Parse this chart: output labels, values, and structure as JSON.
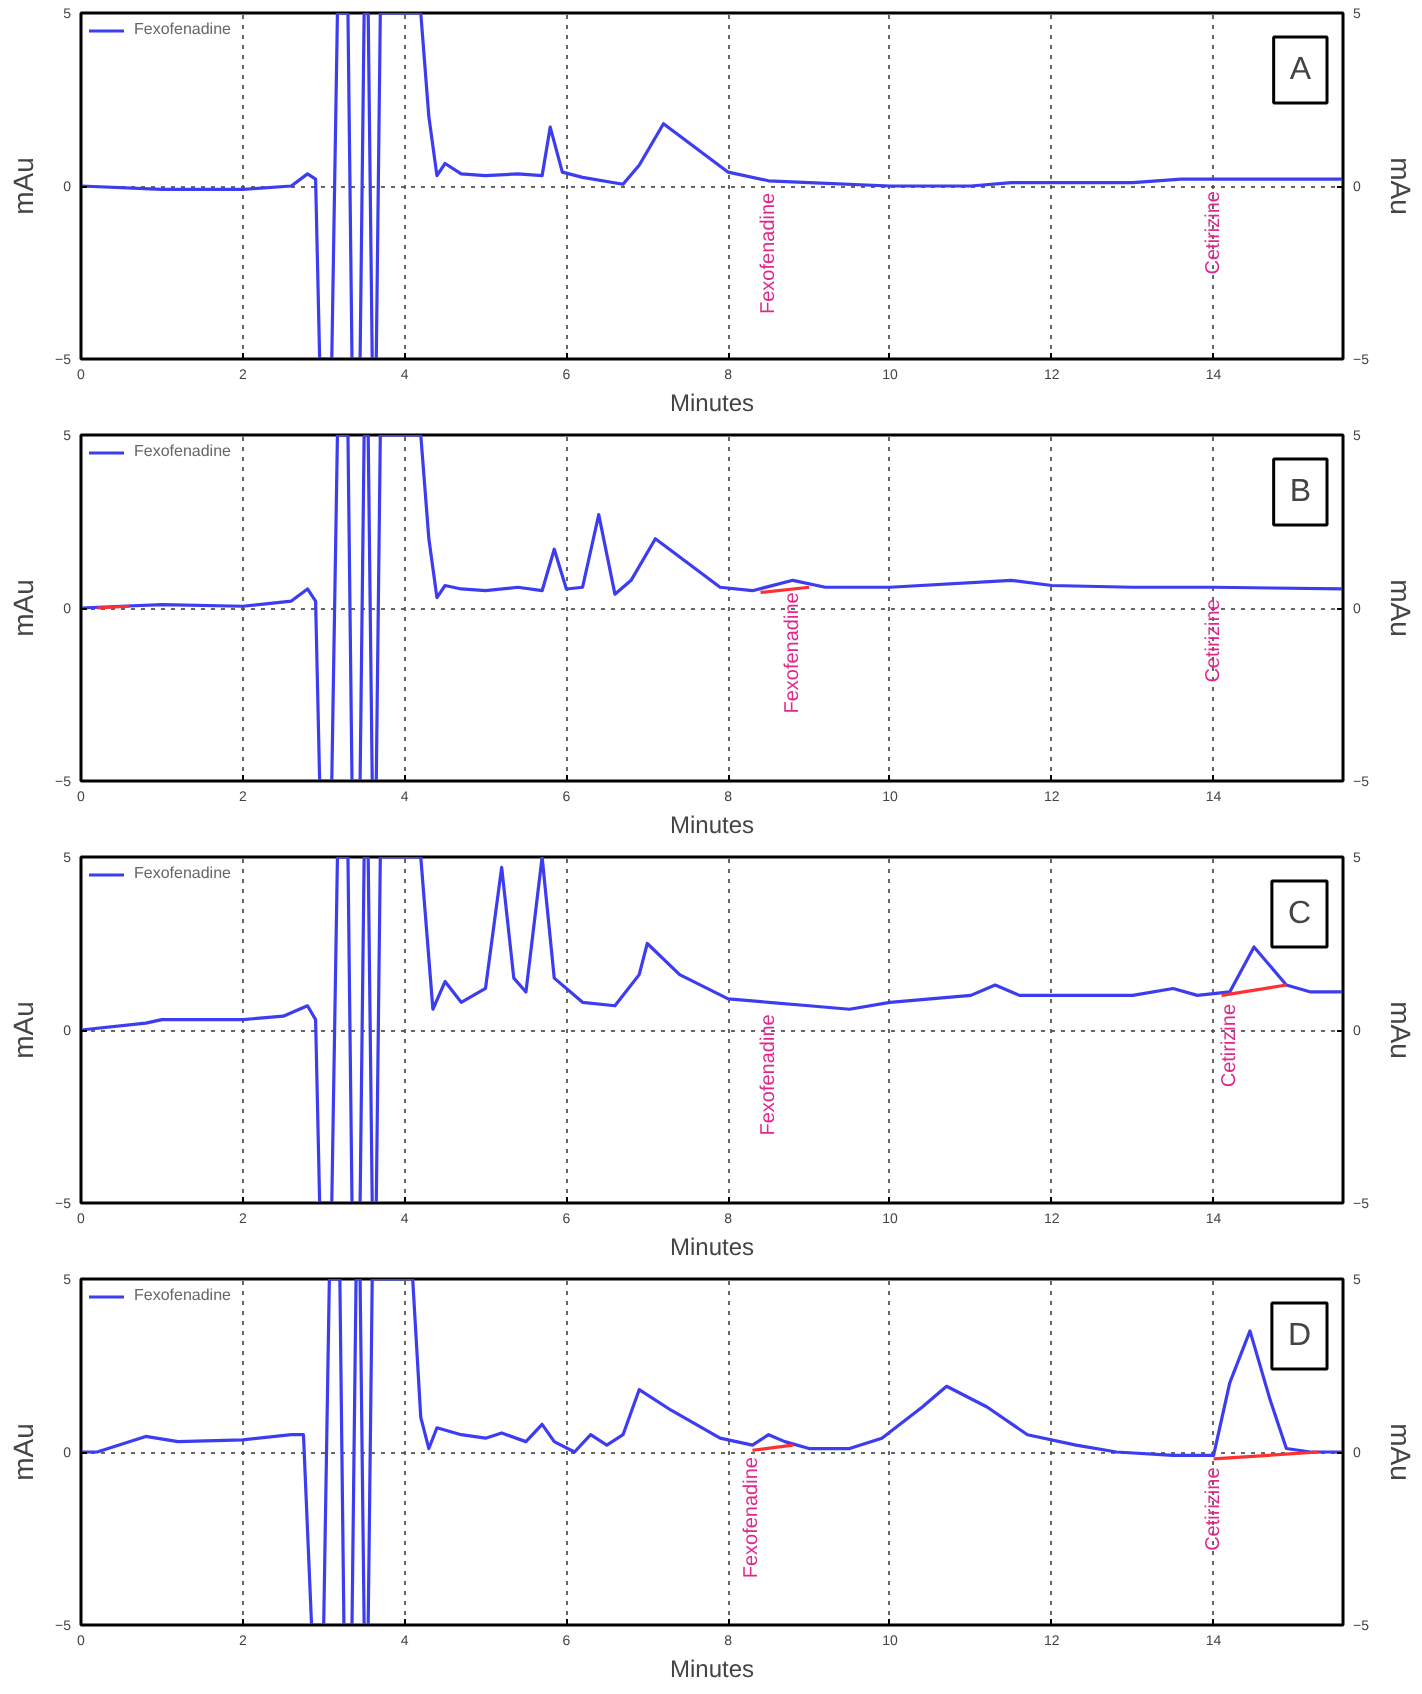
{
  "chart_data": [
    {
      "type": "line",
      "xlabel": "Minutes",
      "ylabel": "mAu",
      "y2label": "mAu",
      "xlim": [
        0,
        15.6
      ],
      "ylim": [
        -5,
        5
      ],
      "y2lim": [
        -5,
        5
      ],
      "xticks": [
        0,
        2,
        4,
        6,
        8,
        10,
        12,
        14
      ],
      "yticks": [
        -5,
        0,
        5
      ],
      "y2ticks": [
        -5,
        0,
        5
      ],
      "grid": true,
      "legend": "top left",
      "line_style": "solid",
      "annotations": [
        "A",
        {
          "text": "Fexofenadine",
          "x": 8.5,
          "y": 0.15
        },
        {
          "text": "Cetirizine",
          "x": 14,
          "y": 0.2
        }
      ],
      "series": [
        {
          "name": "Fexofenadine",
          "color": "#3c3cf0",
          "x": [
            0,
            1,
            2,
            2.6,
            2.8,
            2.9,
            2.95,
            3.1,
            3.17,
            3.3,
            3.35,
            3.45,
            3.5,
            3.55,
            3.6,
            3.65,
            3.7,
            4.2,
            4.3,
            4.4,
            4.5,
            4.7,
            5.0,
            5.4,
            5.7,
            5.8,
            5.95,
            6.2,
            6.7,
            6.9,
            7.2,
            7.6,
            8,
            8.5,
            9,
            10,
            11,
            11.5,
            12,
            13,
            13.6,
            14,
            15.6
          ],
          "values": [
            0,
            -0.1,
            -0.1,
            0,
            0.35,
            0.2,
            -5,
            -5,
            5,
            5,
            -5,
            -5,
            5,
            5,
            -5,
            -5,
            5,
            5,
            2,
            0.3,
            0.65,
            0.35,
            0.3,
            0.35,
            0.3,
            1.7,
            0.4,
            0.25,
            0.05,
            0.6,
            1.8,
            1.1,
            0.4,
            0.15,
            0.1,
            0,
            0,
            0.1,
            0.1,
            0.1,
            0.2,
            0.2,
            0.2
          ]
        }
      ]
    },
    {
      "type": "line",
      "xlabel": "Minutes",
      "ylabel": "mAu",
      "y2label": "mAu",
      "xlim": [
        0,
        15.6
      ],
      "ylim": [
        -5,
        5
      ],
      "y2lim": [
        -5,
        5
      ],
      "xticks": [
        0,
        2,
        4,
        6,
        8,
        10,
        12,
        14
      ],
      "yticks": [
        -5,
        0,
        5
      ],
      "y2ticks": [
        -5,
        0,
        5
      ],
      "grid": true,
      "legend": "top left",
      "line_style": "solid",
      "annotations": [
        "B",
        {
          "text": "Fexofenadine",
          "x": 8.8,
          "y": 0.8
        },
        {
          "text": "Cetirizine",
          "x": 14,
          "y": 0.6
        }
      ],
      "series": [
        {
          "name": "Fexofenadine",
          "color": "#3c3cf0",
          "x": [
            0,
            0.5,
            1,
            2,
            2.6,
            2.8,
            2.9,
            2.95,
            3.1,
            3.17,
            3.3,
            3.35,
            3.45,
            3.5,
            3.55,
            3.6,
            3.65,
            3.7,
            4.2,
            4.3,
            4.4,
            4.5,
            4.7,
            5,
            5.4,
            5.7,
            5.85,
            6.0,
            6.2,
            6.4,
            6.6,
            6.8,
            7.1,
            7.5,
            7.9,
            8.3,
            8.8,
            9.2,
            10,
            11.5,
            12,
            13,
            14,
            15.6
          ],
          "values": [
            0,
            0.05,
            0.1,
            0.05,
            0.2,
            0.55,
            0.2,
            -5,
            -5,
            5,
            5,
            -5,
            -5,
            5,
            5,
            -5,
            -5,
            5,
            5,
            2,
            0.3,
            0.65,
            0.55,
            0.5,
            0.6,
            0.5,
            1.7,
            0.55,
            0.6,
            2.7,
            0.4,
            0.8,
            2.0,
            1.3,
            0.6,
            0.5,
            0.8,
            0.6,
            0.6,
            0.8,
            0.65,
            0.6,
            0.6,
            0.55
          ]
        },
        {
          "color": "#ff3030",
          "x": [
            0.2,
            0.6
          ],
          "values": [
            0,
            0.05
          ]
        },
        {
          "color": "#ff3030",
          "x": [
            8.4,
            9.0
          ],
          "values": [
            0.45,
            0.6
          ]
        }
      ]
    },
    {
      "type": "line",
      "xlabel": "Minutes",
      "ylabel": "mAu",
      "y2label": "mAu",
      "xlim": [
        0,
        15.6
      ],
      "ylim": [
        -5,
        5
      ],
      "y2lim": [
        -5,
        5
      ],
      "xticks": [
        0,
        2,
        4,
        6,
        8,
        10,
        12,
        14
      ],
      "yticks": [
        -5,
        0,
        5
      ],
      "y2ticks": [
        -5,
        0,
        5
      ],
      "grid": true,
      "legend": "top left",
      "line_style": "solid",
      "annotations": [
        "C",
        {
          "text": "Fexofenadine",
          "x": 8.5,
          "y": 0.8
        },
        {
          "text": "Cetirizine",
          "x": 14.2,
          "y": 1.1
        }
      ],
      "series": [
        {
          "name": "Fexofenadine",
          "color": "#3c3cf0",
          "x": [
            0,
            0.8,
            1,
            2,
            2.5,
            2.8,
            2.9,
            2.95,
            3.1,
            3.17,
            3.3,
            3.35,
            3.45,
            3.5,
            3.55,
            3.6,
            3.65,
            3.7,
            4.2,
            4.35,
            4.5,
            4.7,
            5.0,
            5.2,
            5.35,
            5.5,
            5.7,
            5.85,
            6.2,
            6.6,
            6.9,
            7.0,
            7.4,
            8,
            8.5,
            9,
            9.5,
            10,
            11,
            11.3,
            11.6,
            12,
            13,
            13.5,
            13.8,
            14.2,
            14.5,
            14.9,
            15.2,
            15.6
          ],
          "values": [
            0,
            0.2,
            0.3,
            0.3,
            0.4,
            0.7,
            0.3,
            -5,
            -5,
            5,
            5,
            -5,
            -5,
            5,
            5,
            -5,
            -5,
            5,
            5,
            0.6,
            1.4,
            0.8,
            1.2,
            4.7,
            1.5,
            1.1,
            5,
            1.5,
            0.8,
            0.7,
            1.6,
            2.5,
            1.6,
            0.9,
            0.8,
            0.7,
            0.6,
            0.8,
            1.0,
            1.3,
            1.0,
            1.0,
            1.0,
            1.2,
            1.0,
            1.1,
            2.4,
            1.3,
            1.1,
            1.1
          ]
        },
        {
          "color": "#ff3030",
          "x": [
            14.1,
            14.9
          ],
          "values": [
            1.0,
            1.3
          ]
        }
      ]
    },
    {
      "type": "line",
      "xlabel": "Minutes",
      "ylabel": "mAu",
      "y2label": "mAu",
      "xlim": [
        0,
        15.6
      ],
      "ylim": [
        -5,
        5
      ],
      "y2lim": [
        -5,
        5
      ],
      "xticks": [
        0,
        2,
        4,
        6,
        8,
        10,
        12,
        14
      ],
      "yticks": [
        -5,
        0,
        5
      ],
      "y2ticks": [
        -5,
        0,
        5
      ],
      "grid": true,
      "legend": "top left",
      "line_style": "solid",
      "annotations": [
        "D",
        {
          "text": "Fexofenadine",
          "x": 8.3,
          "y": 0.2
        },
        {
          "text": "Cetirizine",
          "x": 14.0,
          "y": -0.1
        }
      ],
      "series": [
        {
          "name": "Fexofenadine",
          "color": "#3c3cf0",
          "x": [
            0,
            0.2,
            0.8,
            1.2,
            2,
            2.6,
            2.75,
            2.85,
            3.0,
            3.07,
            3.2,
            3.25,
            3.35,
            3.4,
            3.45,
            3.5,
            3.55,
            3.6,
            4.1,
            4.2,
            4.3,
            4.4,
            4.7,
            5,
            5.2,
            5.5,
            5.7,
            5.85,
            6.1,
            6.3,
            6.5,
            6.7,
            6.9,
            7.3,
            7.9,
            8.3,
            8.5,
            8.7,
            9,
            9.5,
            9.9,
            10.4,
            10.7,
            11.2,
            11.7,
            12.3,
            12.8,
            13.5,
            14.0,
            14.2,
            14.45,
            14.7,
            14.9,
            15.2,
            15.6
          ],
          "values": [
            0,
            0,
            0.45,
            0.3,
            0.35,
            0.5,
            0.5,
            -5,
            -5,
            5,
            5,
            -5,
            -5,
            5,
            5,
            -5,
            -5,
            5,
            5,
            1,
            0.1,
            0.7,
            0.5,
            0.4,
            0.55,
            0.3,
            0.8,
            0.3,
            0.0,
            0.5,
            0.2,
            0.5,
            1.8,
            1.2,
            0.4,
            0.2,
            0.5,
            0.3,
            0.1,
            0.1,
            0.4,
            1.3,
            1.9,
            1.3,
            0.5,
            0.2,
            0.0,
            -0.1,
            -0.1,
            2.0,
            3.5,
            1.5,
            0.1,
            0.0,
            0.0
          ]
        },
        {
          "color": "#ff3030",
          "x": [
            8.3,
            8.8
          ],
          "values": [
            0.05,
            0.2
          ]
        },
        {
          "color": "#ff3030",
          "x": [
            14.0,
            15.3
          ],
          "values": [
            -0.2,
            0.0
          ]
        }
      ]
    }
  ]
}
